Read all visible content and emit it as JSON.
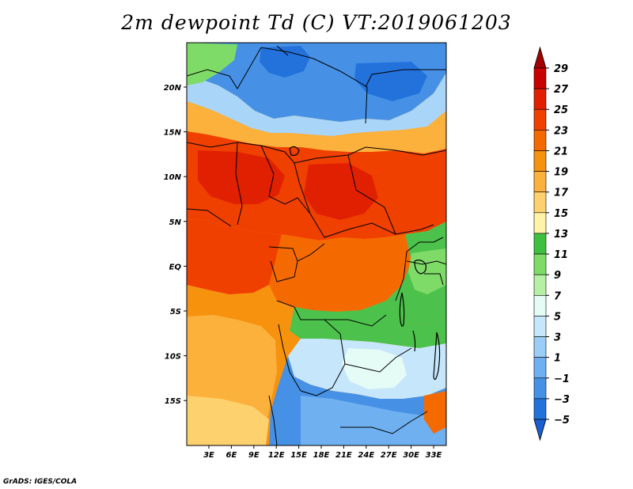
{
  "title": "2m dewpoint Td (C) VT:2019061203",
  "credit": "GrADS: IGES/COLA",
  "map": {
    "lat_labels": [
      "20N",
      "15N",
      "10N",
      "5N",
      "EQ",
      "5S",
      "10S",
      "15S"
    ],
    "lon_labels": [
      "3E",
      "6E",
      "9E",
      "12E",
      "15E",
      "18E",
      "21E",
      "24E",
      "27E",
      "30E",
      "33E"
    ]
  },
  "colorbar": {
    "levels": [
      "29",
      "27",
      "25",
      "23",
      "21",
      "19",
      "17",
      "15",
      "13",
      "11",
      "9",
      "7",
      "5",
      "3",
      "1",
      "−1",
      "−3",
      "−5"
    ],
    "colors": [
      "#a50000",
      "#c80000",
      "#e02000",
      "#f04000",
      "#f56a00",
      "#f7920f",
      "#fbb13c",
      "#fdd16e",
      "#fff3a8",
      "#3fbf3f",
      "#7fdb68",
      "#b5f0a4",
      "#e4fbf6",
      "#c6e6fb",
      "#9ccdf7",
      "#6fb0f0",
      "#4691e6",
      "#2372dc",
      "#1a5fd0"
    ]
  },
  "palette": {
    "green": "#4cc24c",
    "light_blue": "#a9d6f8",
    "pale": "#e4fbf6",
    "boundary": "#000000"
  }
}
